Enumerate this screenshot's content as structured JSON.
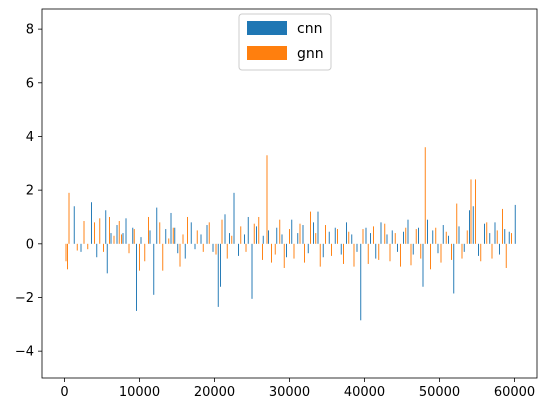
{
  "chart_data": {
    "type": "bar",
    "title": "",
    "xlabel": "",
    "ylabel": "",
    "xlim": [
      -3000,
      63000
    ],
    "ylim": [
      -5,
      8.75
    ],
    "xticks": [
      0,
      10000,
      20000,
      30000,
      40000,
      50000,
      60000
    ],
    "xtick_labels": [
      "0",
      "10000",
      "20000",
      "30000",
      "40000",
      "50000",
      "60000"
    ],
    "yticks": [
      -4,
      -2,
      0,
      2,
      4,
      6,
      8
    ],
    "ytick_labels": [
      "−4",
      "−2",
      "0",
      "2",
      "4",
      "6",
      "8"
    ],
    "grid": false,
    "legend": {
      "position": "upper-center",
      "entries": [
        "cnn",
        "gnn"
      ]
    },
    "series": [
      {
        "name": "cnn",
        "color": "#1f77b4",
        "points": [
          [
            1300,
            1.4
          ],
          [
            2200,
            -0.3
          ],
          [
            3600,
            1.55
          ],
          [
            4300,
            -0.5
          ],
          [
            5500,
            1.25
          ],
          [
            5700,
            -1.1
          ],
          [
            6200,
            0.4
          ],
          [
            7000,
            0.7
          ],
          [
            7800,
            0.4
          ],
          [
            8200,
            0.95
          ],
          [
            9100,
            0.6
          ],
          [
            9600,
            -2.5
          ],
          [
            10200,
            0.25
          ],
          [
            11400,
            0.5
          ],
          [
            11900,
            -1.9
          ],
          [
            12300,
            1.35
          ],
          [
            13500,
            0.55
          ],
          [
            14200,
            1.15
          ],
          [
            14700,
            0.6
          ],
          [
            15100,
            -0.35
          ],
          [
            16100,
            -0.55
          ],
          [
            16900,
            0.8
          ],
          [
            17400,
            -0.2
          ],
          [
            18200,
            0.35
          ],
          [
            19000,
            0.7
          ],
          [
            19800,
            -0.3
          ],
          [
            20500,
            -2.35
          ],
          [
            20800,
            -1.6
          ],
          [
            21400,
            1.1
          ],
          [
            22000,
            0.4
          ],
          [
            22600,
            1.9
          ],
          [
            23200,
            -0.45
          ],
          [
            24000,
            0.35
          ],
          [
            24500,
            1.0
          ],
          [
            25000,
            -2.05
          ],
          [
            25600,
            0.65
          ],
          [
            26500,
            0.3
          ],
          [
            27200,
            0.5
          ],
          [
            28300,
            0.6
          ],
          [
            29000,
            0.35
          ],
          [
            29600,
            -0.5
          ],
          [
            30300,
            0.9
          ],
          [
            31100,
            0.4
          ],
          [
            31800,
            0.7
          ],
          [
            32500,
            -0.35
          ],
          [
            33200,
            0.8
          ],
          [
            33800,
            1.2
          ],
          [
            34500,
            -0.5
          ],
          [
            35300,
            0.45
          ],
          [
            36100,
            0.6
          ],
          [
            36900,
            -0.4
          ],
          [
            37600,
            0.8
          ],
          [
            38300,
            0.35
          ],
          [
            39000,
            -0.3
          ],
          [
            39500,
            -2.85
          ],
          [
            40200,
            0.6
          ],
          [
            40800,
            0.4
          ],
          [
            41500,
            -0.55
          ],
          [
            42200,
            0.8
          ],
          [
            43000,
            0.35
          ],
          [
            43700,
            0.5
          ],
          [
            44400,
            -0.3
          ],
          [
            45200,
            0.45
          ],
          [
            45800,
            0.9
          ],
          [
            46500,
            -0.4
          ],
          [
            47200,
            0.6
          ],
          [
            47800,
            -1.6
          ],
          [
            48400,
            0.9
          ],
          [
            49100,
            0.5
          ],
          [
            49800,
            -0.35
          ],
          [
            50500,
            0.7
          ],
          [
            51200,
            0.3
          ],
          [
            51900,
            -1.85
          ],
          [
            52600,
            0.65
          ],
          [
            53300,
            -0.3
          ],
          [
            54000,
            1.25
          ],
          [
            54500,
            1.4
          ],
          [
            55200,
            -0.45
          ],
          [
            56000,
            0.75
          ],
          [
            56700,
            0.4
          ],
          [
            57400,
            0.8
          ],
          [
            58000,
            -0.4
          ],
          [
            58700,
            0.55
          ],
          [
            59300,
            0.45
          ],
          [
            60100,
            1.45
          ]
        ]
      },
      {
        "name": "gnn",
        "color": "#ff7f0e",
        "points": [
          [
            200,
            -0.65
          ],
          [
            400,
            -0.95
          ],
          [
            600,
            1.9
          ],
          [
            1700,
            -0.25
          ],
          [
            2600,
            0.85
          ],
          [
            3100,
            -0.2
          ],
          [
            4000,
            0.8
          ],
          [
            4700,
            0.95
          ],
          [
            5200,
            -0.3
          ],
          [
            6000,
            1.0
          ],
          [
            6600,
            0.3
          ],
          [
            7300,
            0.85
          ],
          [
            7600,
            0.35
          ],
          [
            8600,
            -0.35
          ],
          [
            9300,
            0.55
          ],
          [
            10000,
            -1.0
          ],
          [
            10700,
            -0.65
          ],
          [
            11200,
            1.0
          ],
          [
            12700,
            0.8
          ],
          [
            13100,
            -1.0
          ],
          [
            13900,
            0.2
          ],
          [
            14500,
            0.6
          ],
          [
            15400,
            -0.85
          ],
          [
            15800,
            0.35
          ],
          [
            16400,
            1.0
          ],
          [
            17700,
            0.5
          ],
          [
            18500,
            -0.3
          ],
          [
            19300,
            0.8
          ],
          [
            20200,
            -0.4
          ],
          [
            21000,
            0.9
          ],
          [
            21700,
            -0.55
          ],
          [
            22300,
            0.3
          ],
          [
            23500,
            0.65
          ],
          [
            24200,
            -0.3
          ],
          [
            25300,
            0.75
          ],
          [
            25900,
            1.0
          ],
          [
            26400,
            -0.6
          ],
          [
            27000,
            3.3
          ],
          [
            27600,
            -0.7
          ],
          [
            28100,
            -0.4
          ],
          [
            28700,
            0.9
          ],
          [
            29300,
            -0.9
          ],
          [
            30000,
            0.55
          ],
          [
            30600,
            -0.55
          ],
          [
            31400,
            0.75
          ],
          [
            32000,
            -0.7
          ],
          [
            32800,
            1.2
          ],
          [
            33500,
            0.4
          ],
          [
            34100,
            -0.85
          ],
          [
            34800,
            0.7
          ],
          [
            35600,
            -0.45
          ],
          [
            36400,
            0.55
          ],
          [
            37200,
            -0.75
          ],
          [
            37900,
            0.45
          ],
          [
            38600,
            -0.85
          ],
          [
            39800,
            0.55
          ],
          [
            40500,
            -0.75
          ],
          [
            41200,
            0.65
          ],
          [
            41900,
            -0.6
          ],
          [
            42700,
            0.75
          ],
          [
            43400,
            -0.65
          ],
          [
            44100,
            0.4
          ],
          [
            44800,
            -0.85
          ],
          [
            45500,
            0.6
          ],
          [
            46200,
            -0.8
          ],
          [
            46900,
            0.55
          ],
          [
            47500,
            -0.55
          ],
          [
            48100,
            3.6
          ],
          [
            48800,
            -0.95
          ],
          [
            49500,
            0.6
          ],
          [
            50200,
            -0.7
          ],
          [
            50900,
            0.45
          ],
          [
            51600,
            -0.6
          ],
          [
            52300,
            1.5
          ],
          [
            53000,
            -0.55
          ],
          [
            53700,
            0.5
          ],
          [
            54200,
            2.4
          ],
          [
            54800,
            2.4
          ],
          [
            55500,
            -0.65
          ],
          [
            56300,
            0.8
          ],
          [
            57000,
            -0.55
          ],
          [
            57700,
            0.5
          ],
          [
            58400,
            1.3
          ],
          [
            58900,
            -0.9
          ],
          [
            59600,
            0.4
          ]
        ]
      }
    ]
  }
}
